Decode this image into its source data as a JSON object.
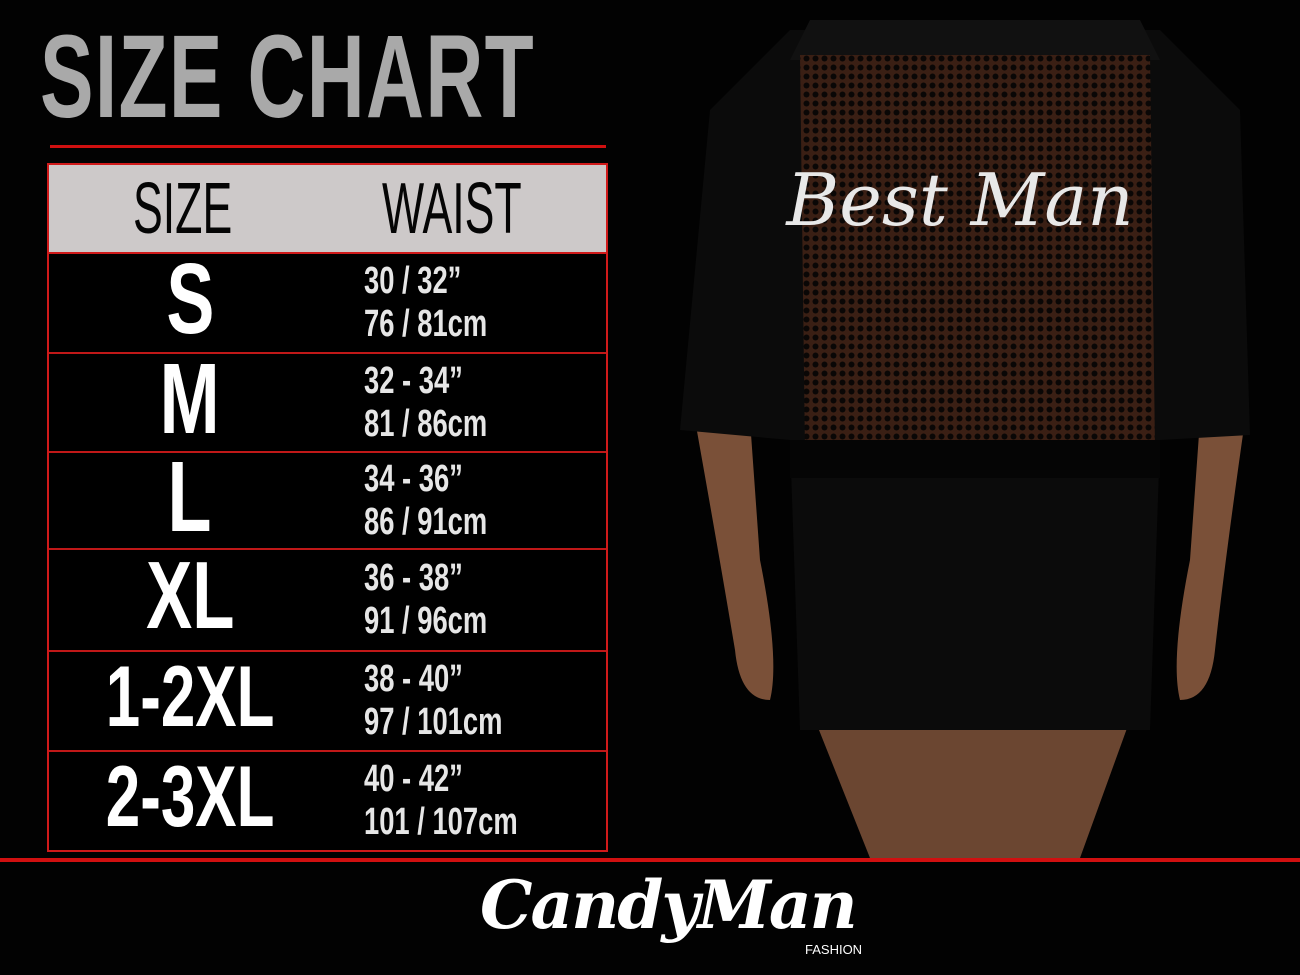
{
  "title": "SIZE CHART",
  "table": {
    "headers": [
      "SIZE",
      "WAIST"
    ],
    "rows": [
      {
        "size": "S",
        "inches": "30 / 32”",
        "cm": "76 / 81cm"
      },
      {
        "size": "M",
        "inches": "32 - 34”",
        "cm": "81 / 86cm"
      },
      {
        "size": "L",
        "inches": "34 - 36”",
        "cm": "86 / 91cm"
      },
      {
        "size": "XL",
        "inches": "36 - 38”",
        "cm": "91 / 96cm"
      },
      {
        "size": "1-2XL",
        "inches": "38 - 40”",
        "cm": "97 / 101cm"
      },
      {
        "size": "2-3XL",
        "inches": "40 - 42”",
        "cm": "101 / 107cm"
      }
    ]
  },
  "product": {
    "back_print": "Best Man"
  },
  "brand": {
    "name": "CandyMan",
    "sub": "FASHION"
  },
  "colors": {
    "accent": "#d01010",
    "header_bg": "#cdc9c9",
    "title": "#a9a9a9"
  }
}
